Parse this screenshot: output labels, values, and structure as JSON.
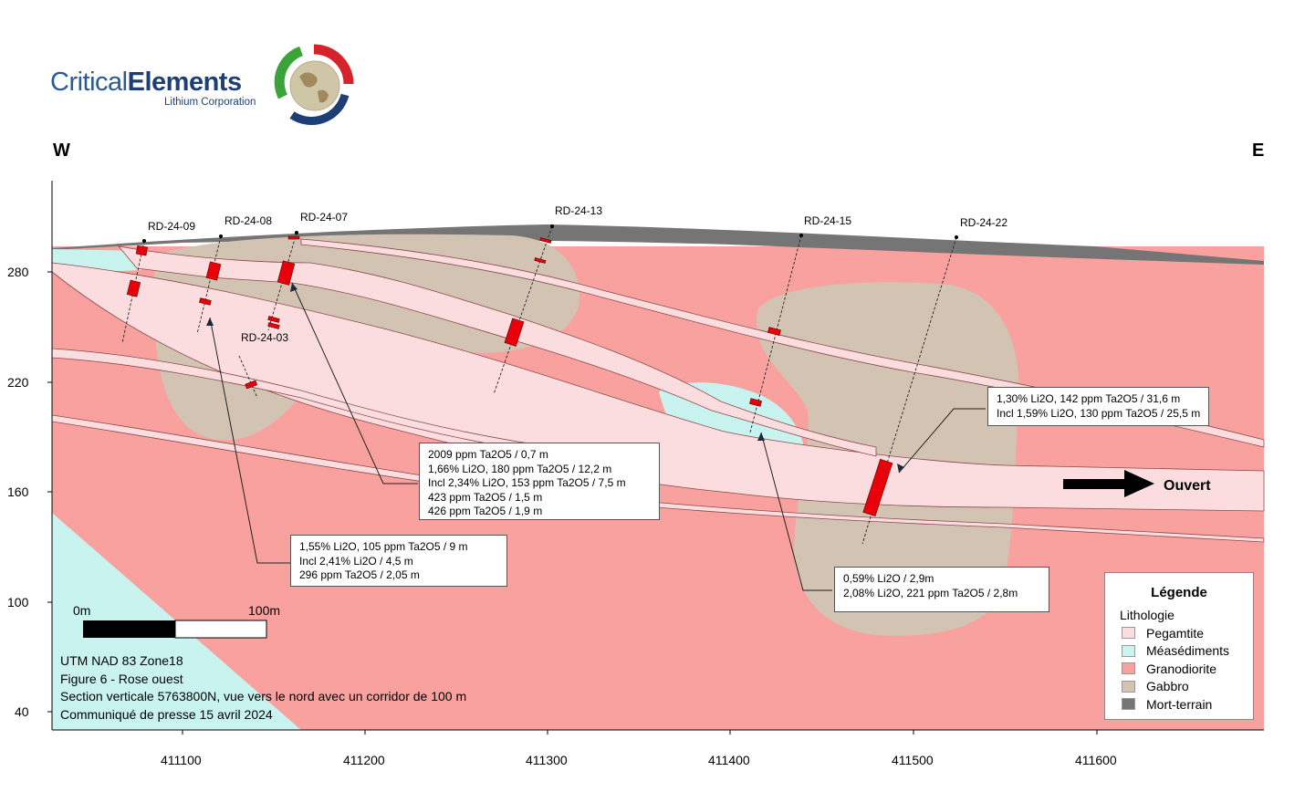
{
  "logo": {
    "name_light": "Critical",
    "name_bold": "Elements",
    "subtitle": "Lithium Corporation",
    "colors": {
      "blue": "#1d3f73",
      "green": "#3aa33a",
      "red": "#d4232a"
    }
  },
  "directions": {
    "west": "W",
    "east": "E"
  },
  "axes": {
    "y_ticks": [
      "280",
      "220",
      "160",
      "100",
      "40"
    ],
    "x_ticks": [
      "411100",
      "411200",
      "411300",
      "411400",
      "411500",
      "411600"
    ]
  },
  "drillholes": [
    "RD-24-09",
    "RD-24-08",
    "RD-24-07",
    "RD-24-13",
    "RD-24-15",
    "RD-24-22",
    "RD-24-03"
  ],
  "callouts": {
    "rd2422": [
      "1,30% Li2O, 142 ppm Ta2O5 / 31,6 m",
      "Incl 1,59% Li2O, 130 ppm Ta2O5 / 25,5 m"
    ],
    "rd2407": [
      "2009 ppm Ta2O5 / 0,7 m",
      "1,66% Li2O, 180 ppm Ta2O5 / 12,2 m",
      "Incl 2,34% Li2O, 153 ppm Ta2O5 / 7,5 m",
      "423 ppm Ta2O5 / 1,5 m",
      "426 ppm Ta2O5 / 1,9 m"
    ],
    "rd2408": [
      "1,55% Li2O, 105 ppm Ta2O5 / 9 m",
      "Incl 2,41% Li2O / 4,5 m",
      "296 ppm Ta2O5 / 2,05 m"
    ],
    "rd2415": [
      "0,59% Li2O / 2,9m",
      "2,08% Li2O, 221 ppm Ta2O5 / 2,8m"
    ]
  },
  "open_label": "Ouvert",
  "scale_bar": {
    "start": "0m",
    "end": "100m"
  },
  "notes": [
    "UTM NAD 83 Zone18",
    "Figure 6 - Rose ouest",
    "Section verticale 5763800N, vue vers le nord avec un corridor de 100 m",
    "Communiqué de presse 15 avril 2024"
  ],
  "legend": {
    "title": "Légende",
    "subtitle": "Lithologie",
    "items": [
      {
        "label": "Pegamtite",
        "color": "#fbdde0"
      },
      {
        "label": "Méasédiments",
        "color": "#c9f3ef"
      },
      {
        "label": "Granodiorite",
        "color": "#f9a19f"
      },
      {
        "label": "Gabbro",
        "color": "#d3c3b3"
      },
      {
        "label": "Mort-terrain",
        "color": "#757575"
      }
    ]
  },
  "colors": {
    "pegmatite": "#fbdde0",
    "metasediment": "#c9f3ef",
    "granodiorite": "#f9a19f",
    "gabbro": "#d3c3b3",
    "overburden": "#757575",
    "intercept": "#e8000a"
  }
}
